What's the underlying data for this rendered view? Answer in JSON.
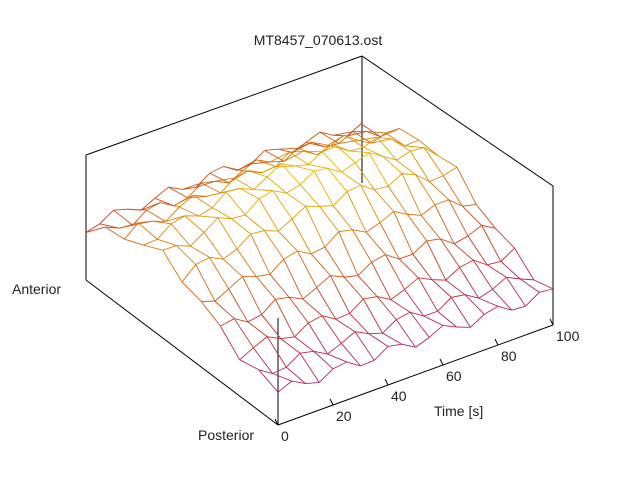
{
  "chart_data": {
    "type": "surface",
    "title": "MT8457_070613.ost",
    "xlabel": "Time [s]",
    "y_axis_end_labels": [
      "Anterior",
      "Posterior"
    ],
    "xlim": [
      0,
      100
    ],
    "x_ticks": [
      0,
      20,
      40,
      60,
      80,
      100
    ],
    "colormap": [
      "#8a00ff",
      "#c0342a",
      "#e0a000",
      "#ffff00"
    ],
    "grid": false,
    "surface_description_values": {
      "time_samples": [
        0,
        5,
        10,
        15,
        20,
        25,
        30,
        35,
        40,
        45,
        50,
        55,
        60,
        65,
        70,
        75,
        80,
        85,
        90,
        95,
        100
      ],
      "position_fraction_samples": [
        0,
        0.1,
        0.2,
        0.3,
        0.4,
        0.5,
        0.6,
        0.7,
        0.8,
        0.9,
        1.0
      ],
      "relative_height_peak_by_time": [
        0.55,
        0.6,
        0.62,
        0.65,
        0.7,
        0.72,
        0.75,
        0.78,
        0.8,
        0.82,
        0.85,
        0.85,
        0.86,
        0.85,
        0.84,
        0.82,
        0.8,
        0.75,
        0.7,
        0.65,
        0.6
      ]
    }
  }
}
